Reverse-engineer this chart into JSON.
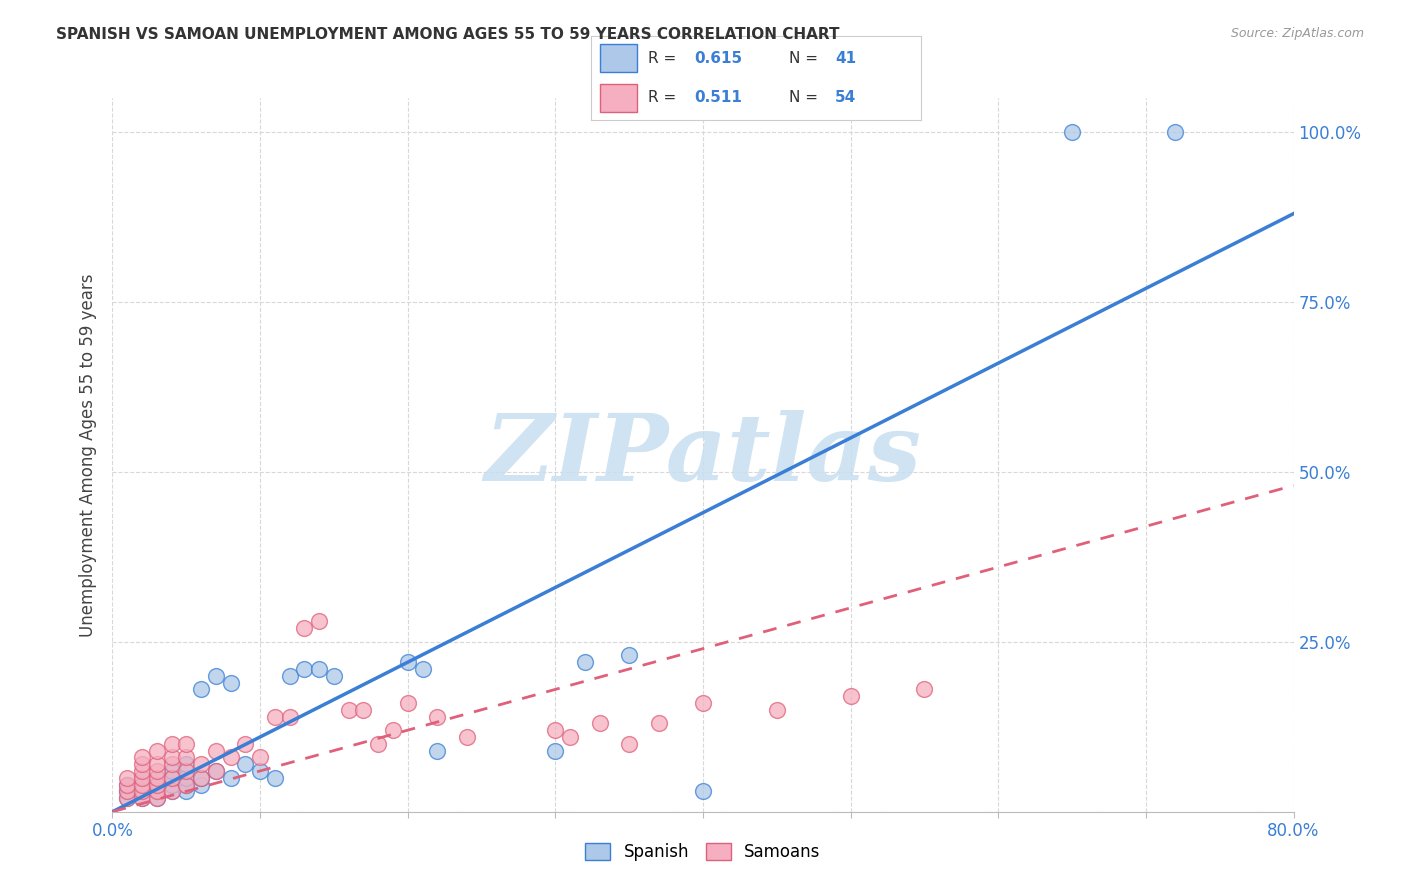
{
  "title": "SPANISH VS SAMOAN UNEMPLOYMENT AMONG AGES 55 TO 59 YEARS CORRELATION CHART",
  "source": "Source: ZipAtlas.com",
  "ylabel": "Unemployment Among Ages 55 to 59 years",
  "xlim": [
    0.0,
    0.8
  ],
  "ylim": [
    0.0,
    1.05
  ],
  "xtick_positions": [
    0.0,
    0.1,
    0.2,
    0.3,
    0.4,
    0.5,
    0.6,
    0.7,
    0.8
  ],
  "xticklabels": [
    "0.0%",
    "",
    "",
    "",
    "",
    "",
    "",
    "",
    "80.0%"
  ],
  "ytick_vals": [
    0.0,
    0.25,
    0.5,
    0.75,
    1.0
  ],
  "ytick_labels": [
    "",
    "25.0%",
    "50.0%",
    "75.0%",
    "100.0%"
  ],
  "spanish_R": "0.615",
  "spanish_N": "41",
  "samoan_R": "0.511",
  "samoan_N": "54",
  "spanish_scatter_color": "#adc8e8",
  "samoan_scatter_color": "#f5afc0",
  "spanish_line_color": "#3a7fd5",
  "samoan_line_color": "#e0607a",
  "background_color": "#ffffff",
  "grid_color": "#d8d8d8",
  "watermark_text": "ZIPatlas",
  "watermark_color": "#c8dff0",
  "legend_spanish_label": "Spanish",
  "legend_samoan_label": "Samoans",
  "spanish_line_slope": 1.1,
  "spanish_line_intercept": 0.0,
  "samoan_line_slope": 0.6,
  "samoan_line_intercept": 0.0,
  "spanish_scatter_x": [
    0.01,
    0.01,
    0.01,
    0.02,
    0.02,
    0.02,
    0.03,
    0.03,
    0.03,
    0.03,
    0.04,
    0.04,
    0.04,
    0.04,
    0.05,
    0.05,
    0.05,
    0.05,
    0.06,
    0.06,
    0.06,
    0.07,
    0.07,
    0.08,
    0.08,
    0.09,
    0.1,
    0.11,
    0.12,
    0.13,
    0.14,
    0.15,
    0.2,
    0.21,
    0.22,
    0.3,
    0.32,
    0.35,
    0.4,
    0.65,
    0.72
  ],
  "spanish_scatter_y": [
    0.02,
    0.03,
    0.04,
    0.02,
    0.04,
    0.05,
    0.02,
    0.03,
    0.04,
    0.05,
    0.03,
    0.04,
    0.05,
    0.06,
    0.03,
    0.04,
    0.05,
    0.07,
    0.04,
    0.05,
    0.18,
    0.06,
    0.2,
    0.05,
    0.19,
    0.07,
    0.06,
    0.05,
    0.2,
    0.21,
    0.21,
    0.2,
    0.22,
    0.21,
    0.09,
    0.09,
    0.22,
    0.23,
    0.03,
    1.0,
    1.0
  ],
  "samoan_scatter_x": [
    0.01,
    0.01,
    0.01,
    0.01,
    0.02,
    0.02,
    0.02,
    0.02,
    0.02,
    0.02,
    0.02,
    0.03,
    0.03,
    0.03,
    0.03,
    0.03,
    0.03,
    0.03,
    0.04,
    0.04,
    0.04,
    0.04,
    0.04,
    0.05,
    0.05,
    0.05,
    0.05,
    0.06,
    0.06,
    0.07,
    0.07,
    0.08,
    0.09,
    0.1,
    0.11,
    0.12,
    0.13,
    0.14,
    0.16,
    0.17,
    0.18,
    0.19,
    0.2,
    0.22,
    0.24,
    0.3,
    0.31,
    0.33,
    0.35,
    0.37,
    0.4,
    0.45,
    0.5,
    0.55
  ],
  "samoan_scatter_y": [
    0.02,
    0.03,
    0.04,
    0.05,
    0.02,
    0.03,
    0.04,
    0.05,
    0.06,
    0.07,
    0.08,
    0.02,
    0.03,
    0.04,
    0.05,
    0.06,
    0.07,
    0.09,
    0.03,
    0.05,
    0.07,
    0.08,
    0.1,
    0.04,
    0.06,
    0.08,
    0.1,
    0.05,
    0.07,
    0.06,
    0.09,
    0.08,
    0.1,
    0.08,
    0.14,
    0.14,
    0.27,
    0.28,
    0.15,
    0.15,
    0.1,
    0.12,
    0.16,
    0.14,
    0.11,
    0.12,
    0.11,
    0.13,
    0.1,
    0.13,
    0.16,
    0.15,
    0.17,
    0.18
  ]
}
